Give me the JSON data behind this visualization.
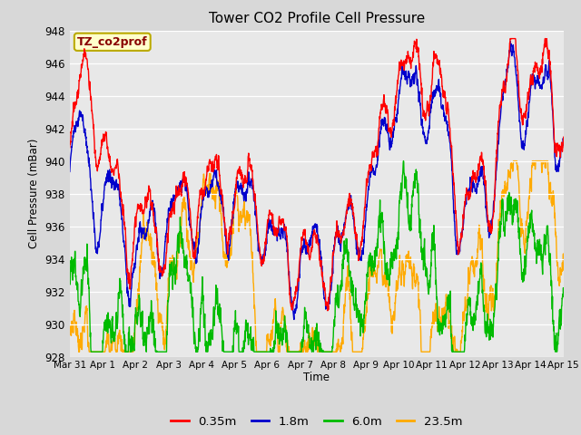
{
  "title": "Tower CO2 Profile Cell Pressure",
  "ylabel": "Cell Pressure (mBar)",
  "xlabel": "Time",
  "annotation": "TZ_co2prof",
  "annotation_color": "#880000",
  "ylim": [
    928,
    948
  ],
  "yticks": [
    928,
    930,
    932,
    934,
    936,
    938,
    940,
    942,
    944,
    946,
    948
  ],
  "xtick_labels": [
    "Mar 31",
    "Apr 1",
    "Apr 2",
    "Apr 3",
    "Apr 4",
    "Apr 5",
    "Apr 6",
    "Apr 7",
    "Apr 8",
    "Apr 9",
    "Apr 10",
    "Apr 11",
    "Apr 12",
    "Apr 13",
    "Apr 14",
    "Apr 15"
  ],
  "legend_labels": [
    "0.35m",
    "1.8m",
    "6.0m",
    "23.5m"
  ],
  "line_colors": [
    "#ff0000",
    "#0000cc",
    "#00bb00",
    "#ffaa00"
  ],
  "line_width": 1.0,
  "bg_color": "#d8d8d8",
  "plot_bg_color": "#e8e8e8",
  "annotation_bg": "#ffffcc",
  "annotation_border": "#bbaa00",
  "n_days": 15,
  "seed": 42,
  "figsize": [
    6.4,
    4.8
  ],
  "dpi": 100
}
